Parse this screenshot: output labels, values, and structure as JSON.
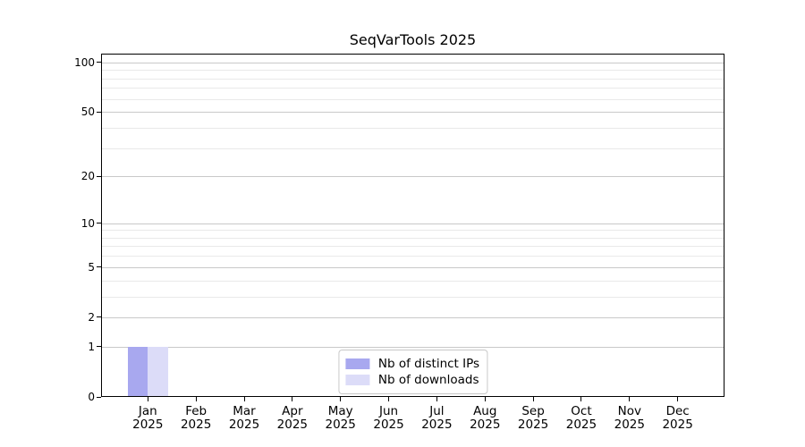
{
  "chart_data": {
    "type": "bar",
    "title": "SeqVarTools 2025",
    "categories": [
      "Jan 2025",
      "Feb 2025",
      "Mar 2025",
      "Apr 2025",
      "May 2025",
      "Jun 2025",
      "Jul 2025",
      "Aug 2025",
      "Sep 2025",
      "Oct 2025",
      "Nov 2025",
      "Dec 2025"
    ],
    "series": [
      {
        "name": "Nb of distinct IPs",
        "color": "#a8a8ef",
        "values": [
          1,
          0,
          0,
          0,
          0,
          0,
          0,
          0,
          0,
          0,
          0,
          0
        ]
      },
      {
        "name": "Nb of downloads",
        "color": "#dcdcf8",
        "values": [
          1,
          0,
          0,
          0,
          0,
          0,
          0,
          0,
          0,
          0,
          0,
          0
        ]
      }
    ],
    "xlabel": "",
    "ylabel": "",
    "y_axis": {
      "scale": "log10(value+1)",
      "major_ticks": [
        100,
        50,
        20,
        10,
        5,
        2,
        1,
        0
      ],
      "minor_gridlines": [
        90,
        80,
        70,
        60,
        40,
        30,
        9,
        8,
        7,
        6,
        4,
        3
      ],
      "top_value": 113
    },
    "grid": true,
    "legend": {
      "position": "inside lower center",
      "entries": [
        "Nb of distinct IPs",
        "Nb of downloads"
      ]
    },
    "colors": {
      "major_grid": "#c9c9c9",
      "minor_grid": "#e9e9e9",
      "spine": "#000000",
      "background": "#ffffff"
    }
  }
}
